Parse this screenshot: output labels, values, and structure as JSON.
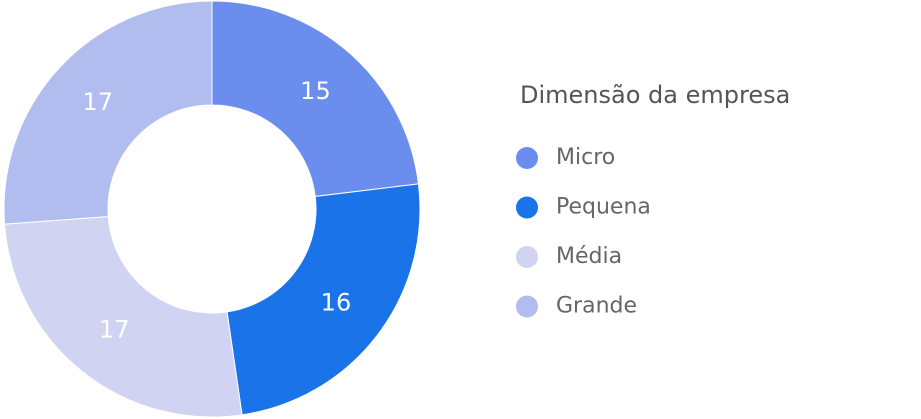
{
  "chart_data": {
    "type": "donut",
    "legend_title": "Dimensão da empresa",
    "categories": [
      "Micro",
      "Pequena",
      "Média",
      "Grande"
    ],
    "values": [
      15,
      16,
      17,
      17
    ],
    "colors": [
      "#6b8ded",
      "#1a73e8",
      "#d0d4f2",
      "#b1bcef"
    ]
  }
}
